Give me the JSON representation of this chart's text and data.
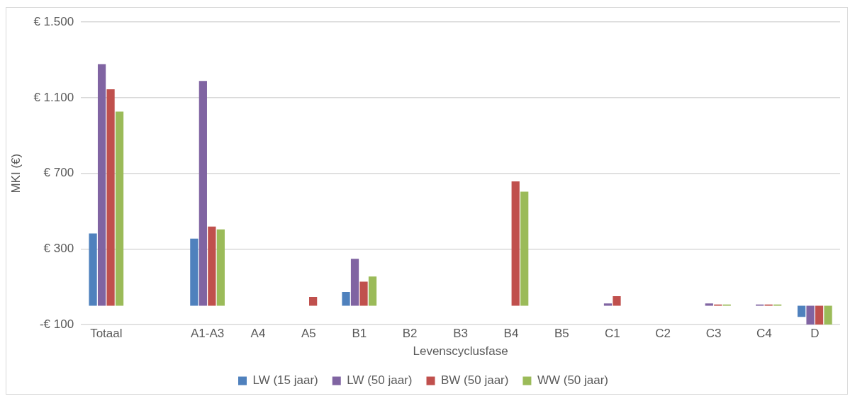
{
  "chart_data": {
    "type": "bar",
    "xlabel": "Levenscyclusfase",
    "ylabel": "MKI (€)",
    "categories": [
      "Totaal",
      null,
      "A1-A3",
      "A4",
      "A5",
      "B1",
      "B2",
      "B3",
      "B4",
      "B5",
      "C1",
      "C2",
      "C3",
      "C4",
      "D"
    ],
    "series": [
      {
        "name": "LW (15 jaar)",
        "color": "#4f81bd",
        "values": [
          382,
          null,
          355,
          0,
          0,
          73,
          0,
          0,
          0,
          0,
          0,
          0,
          0,
          0,
          -59
        ]
      },
      {
        "name": "LW (50 jaar)",
        "color": "#8064a2",
        "values": [
          1278,
          null,
          1189,
          0,
          0,
          248,
          0,
          0,
          0,
          0,
          12,
          0,
          12,
          7,
          -100
        ]
      },
      {
        "name": "BW (50 jaar)",
        "color": "#c0504d",
        "values": [
          1145,
          null,
          419,
          0,
          47,
          127,
          0,
          0,
          658,
          0,
          51,
          0,
          7,
          7,
          -100
        ]
      },
      {
        "name": "WW (50 jaar)",
        "color": "#9bbb59",
        "values": [
          1027,
          null,
          404,
          0,
          0,
          155,
          0,
          0,
          603,
          0,
          0,
          0,
          7,
          7,
          -100
        ]
      }
    ],
    "ylim": [
      -100,
      1500
    ],
    "yticks": [
      {
        "value": -100,
        "label": "-€ 100"
      },
      {
        "value": 300,
        "label": "€ 300"
      },
      {
        "value": 700,
        "label": "€ 700"
      },
      {
        "value": 1100,
        "label": "€ 1.100"
      },
      {
        "value": 1500,
        "label": "€ 1.500"
      }
    ],
    "grid": "y",
    "legend": "bottom"
  }
}
